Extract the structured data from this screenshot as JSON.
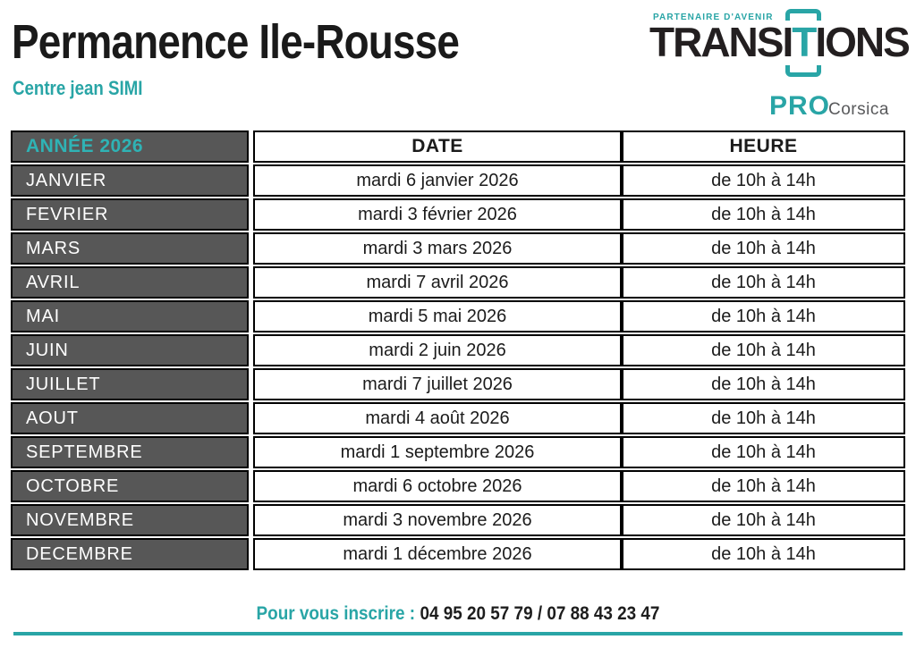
{
  "header": {
    "title": "Permanence Ile-Rousse",
    "subtitle": "Centre jean SIMI"
  },
  "logo": {
    "tagline": "PARTENAIRE D'AVENIR",
    "brand_prefix": "TRANSI",
    "brand_t": "T",
    "brand_suffix": "IONS",
    "sub_brand": "PRO",
    "region": "Corsica"
  },
  "table": {
    "headers": [
      "ANNÉE 2026",
      "DATE",
      "HEURE"
    ],
    "rows": [
      {
        "month": "JANVIER",
        "date": "mardi 6 janvier 2026",
        "heure": "de 10h à 14h"
      },
      {
        "month": "FEVRIER",
        "date": "mardi 3 février 2026",
        "heure": "de 10h à 14h"
      },
      {
        "month": "MARS",
        "date": "mardi 3 mars 2026",
        "heure": "de 10h à 14h"
      },
      {
        "month": "AVRIL",
        "date": "mardi 7 avril 2026",
        "heure": "de 10h à 14h"
      },
      {
        "month": "MAI",
        "date": "mardi 5 mai 2026",
        "heure": "de 10h à 14h"
      },
      {
        "month": "JUIN",
        "date": "mardi 2 juin 2026",
        "heure": "de 10h à 14h"
      },
      {
        "month": "JUILLET",
        "date": "mardi 7 juillet 2026",
        "heure": "de 10h à 14h"
      },
      {
        "month": "AOUT",
        "date": "mardi 4 août 2026",
        "heure": "de 10h à 14h"
      },
      {
        "month": "SEPTEMBRE",
        "date": "mardi 1 septembre 2026",
        "heure": "de 10h à 14h"
      },
      {
        "month": "OCTOBRE",
        "date": "mardi 6 octobre 2026",
        "heure": "de 10h à 14h"
      },
      {
        "month": "NOVEMBRE",
        "date": "mardi 3 novembre 2026",
        "heure": "de 10h à 14h"
      },
      {
        "month": "DECEMBRE",
        "date": "mardi 1 décembre 2026",
        "heure": "de 10h à 14h"
      }
    ]
  },
  "footer": {
    "label": "Pour vous inscrire :",
    "phones": "04 95 20 57 79 / 07 88 43 23 47"
  },
  "colors": {
    "teal": "#29A5A6",
    "teal_bright": "#2FB3B5",
    "month_column_bg": "#575757",
    "table_border": "#000000",
    "text": "#1B1B1B",
    "region_gray": "#58595B"
  }
}
